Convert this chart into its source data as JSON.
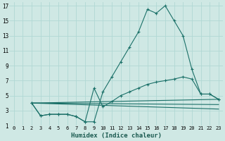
{
  "xlabel": "Humidex (Indice chaleur)",
  "bg_color": "#cfe8e4",
  "grid_color": "#b0d8d4",
  "line_color": "#1a7068",
  "xlim": [
    -0.5,
    23.5
  ],
  "ylim": [
    1,
    17.5
  ],
  "yticks": [
    1,
    3,
    5,
    7,
    9,
    11,
    13,
    15,
    17
  ],
  "xticks": [
    0,
    1,
    2,
    3,
    4,
    5,
    6,
    7,
    8,
    9,
    10,
    11,
    12,
    13,
    14,
    15,
    16,
    17,
    18,
    19,
    20,
    21,
    22,
    23
  ],
  "line1_x": [
    2,
    3,
    4,
    5,
    6,
    7,
    8,
    9,
    10,
    11,
    12,
    13,
    14,
    15,
    16,
    17,
    18,
    19,
    20,
    21,
    22,
    23
  ],
  "line1_y": [
    4,
    2.3,
    2.5,
    2.5,
    2.5,
    2.2,
    1.5,
    1.5,
    5.5,
    7.5,
    9.5,
    11.5,
    13.5,
    16.5,
    16,
    17,
    15,
    13,
    8.5,
    5.2,
    5.2,
    4.5
  ],
  "line2_x": [
    2,
    3,
    4,
    5,
    6,
    7,
    8,
    9,
    10,
    11,
    12,
    13,
    14,
    15,
    16,
    17,
    18,
    19,
    20,
    21,
    22,
    23
  ],
  "line2_y": [
    4,
    2.3,
    2.5,
    2.5,
    2.5,
    2.2,
    1.5,
    6.0,
    3.5,
    4.2,
    5.0,
    5.5,
    6.0,
    6.5,
    6.8,
    7.0,
    7.2,
    7.5,
    7.2,
    5.2,
    5.2,
    4.5
  ],
  "line3_x": [
    2,
    23
  ],
  "line3_y": [
    4,
    4.5
  ],
  "line4_x": [
    2,
    23
  ],
  "line4_y": [
    4,
    3.8
  ],
  "line5_x": [
    2,
    23
  ],
  "line5_y": [
    4,
    3.2
  ]
}
